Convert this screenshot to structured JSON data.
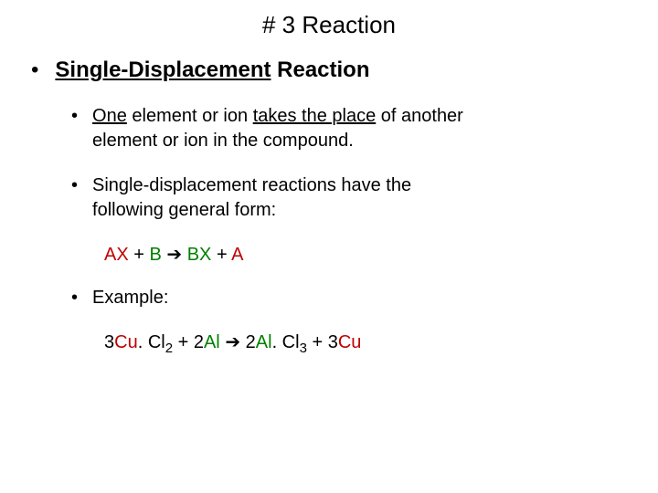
{
  "title": "# 3 Reaction",
  "heading": {
    "underlined": "Single-Displacement",
    "rest": " Reaction"
  },
  "point1": {
    "p1": "One",
    "p2": " element or ion ",
    "p3": "takes the place",
    "p4": " of another element or ion in the compound."
  },
  "point2": "Single-displacement reactions have the following general form:",
  "formula": {
    "ax": "AX",
    "plus1": " + ",
    "b": "B",
    "arrow1": " ➔ ",
    "bx": "BX",
    "plus2": " + ",
    "a": "A"
  },
  "point3": "Example:",
  "example": {
    "t1": "3",
    "t2": "Cu",
    "t3": ". Cl",
    "sub1": "2",
    "t4": " + 2",
    "t5": "Al",
    "arrow2": " ➔ ",
    "t6": " 2",
    "t7": "Al",
    "t8": ". Cl",
    "sub2": "3",
    "t9": " + 3",
    "t10": "Cu"
  },
  "colors": {
    "red": "#c00000",
    "green": "#008000",
    "text": "#000000",
    "bg": "#ffffff"
  }
}
